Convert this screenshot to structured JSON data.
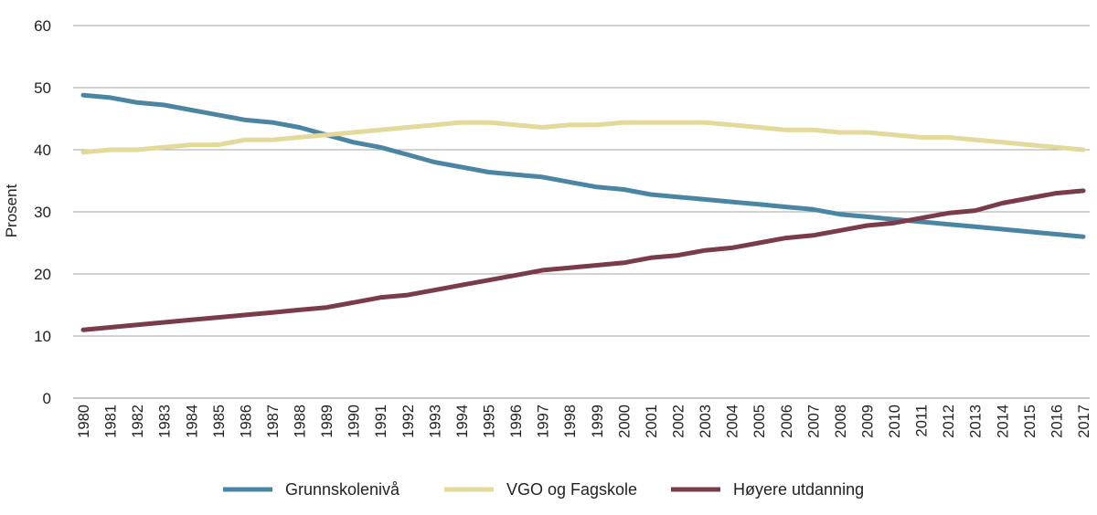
{
  "chart_data": {
    "type": "line",
    "ylabel": "Prosent",
    "ylim": [
      0,
      60
    ],
    "yticks": [
      0,
      10,
      20,
      30,
      40,
      50,
      60
    ],
    "grid": true,
    "legend_position": "bottom",
    "x": [
      "1980",
      "1981",
      "1982",
      "1983",
      "1984",
      "1985",
      "1986",
      "1987",
      "1988",
      "1989",
      "1990",
      "1991",
      "1992",
      "1993",
      "1994",
      "1995",
      "1996",
      "1997",
      "1998",
      "1999",
      "2000",
      "2001",
      "2002",
      "2003",
      "2004",
      "2005",
      "2006",
      "2007",
      "2008",
      "2009",
      "2010",
      "2011",
      "2012",
      "2013",
      "2014",
      "2015",
      "2016",
      "2017"
    ],
    "series": [
      {
        "name": "Grunnskolenivå",
        "color": "#4a86a3",
        "values": [
          48.8,
          48.4,
          47.6,
          47.2,
          46.4,
          45.6,
          44.8,
          44.4,
          43.6,
          42.4,
          41.2,
          40.4,
          39.2,
          38.0,
          37.2,
          36.4,
          36.0,
          35.6,
          34.8,
          34.0,
          33.6,
          32.8,
          32.4,
          32.0,
          31.6,
          31.2,
          30.8,
          30.4,
          29.6,
          29.2,
          28.8,
          28.4,
          28.0,
          27.6,
          27.2,
          26.8,
          26.4,
          26.0
        ]
      },
      {
        "name": "VGO og Fagskole",
        "color": "#e3d99a",
        "values": [
          39.6,
          40.0,
          40.0,
          40.4,
          40.8,
          40.8,
          41.6,
          41.6,
          42.0,
          42.4,
          42.8,
          43.2,
          43.6,
          44.0,
          44.4,
          44.4,
          44.0,
          43.6,
          44.0,
          44.0,
          44.4,
          44.4,
          44.4,
          44.4,
          44.0,
          43.6,
          43.2,
          43.2,
          42.8,
          42.8,
          42.4,
          42.0,
          42.0,
          41.6,
          41.2,
          40.8,
          40.4,
          40.0
        ]
      },
      {
        "name": "Høyere utdanning",
        "color": "#7a3b4b",
        "values": [
          11.0,
          11.4,
          11.8,
          12.2,
          12.6,
          13.0,
          13.4,
          13.8,
          14.2,
          14.6,
          15.4,
          16.2,
          16.6,
          17.4,
          18.2,
          19.0,
          19.8,
          20.6,
          21.0,
          21.4,
          21.8,
          22.6,
          23.0,
          23.8,
          24.2,
          25.0,
          25.8,
          26.2,
          27.0,
          27.8,
          28.2,
          29.0,
          29.8,
          30.2,
          31.4,
          32.2,
          33.0,
          33.4
        ]
      }
    ]
  }
}
